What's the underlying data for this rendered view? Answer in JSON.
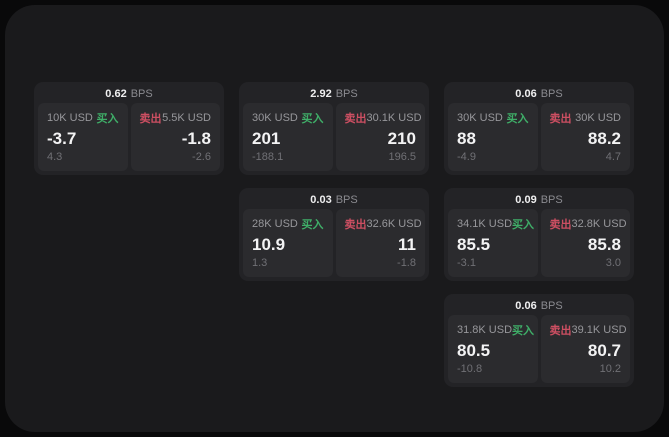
{
  "labels": {
    "bps_unit": "BPS",
    "buy_action": "买入",
    "sell_action": "卖出"
  },
  "colors": {
    "buy_green": "#3fae68",
    "sell_red": "#cd4f62",
    "page_background": "#09090a",
    "panel_background": "#1a1a1c",
    "card_background": "#232326",
    "cell_background": "#2b2b2e"
  },
  "cards": [
    {
      "bps": "0.62",
      "col": 1,
      "row": 1,
      "buy": {
        "notional": "10K USD",
        "price": "-3.7",
        "change": "4.3"
      },
      "sell": {
        "notional": "5.5K USD",
        "price": "-1.8",
        "change": "-2.6"
      }
    },
    {
      "bps": "2.92",
      "col": 2,
      "row": 1,
      "buy": {
        "notional": "30K USD",
        "price": "201",
        "change": "-188.1"
      },
      "sell": {
        "notional": "30.1K USD",
        "price": "210",
        "change": "196.5"
      }
    },
    {
      "bps": "0.06",
      "col": 3,
      "row": 1,
      "buy": {
        "notional": "30K USD",
        "price": "88",
        "change": "-4.9"
      },
      "sell": {
        "notional": "30K USD",
        "price": "88.2",
        "change": "4.7"
      }
    },
    {
      "bps": "0.03",
      "col": 2,
      "row": 2,
      "buy": {
        "notional": "28K USD",
        "price": "10.9",
        "change": "1.3"
      },
      "sell": {
        "notional": "32.6K USD",
        "price": "11",
        "change": "-1.8"
      }
    },
    {
      "bps": "0.09",
      "col": 3,
      "row": 2,
      "buy": {
        "notional": "34.1K USD",
        "price": "85.5",
        "change": "-3.1"
      },
      "sell": {
        "notional": "32.8K USD",
        "price": "85.8",
        "change": "3.0"
      }
    },
    {
      "bps": "0.06",
      "col": 3,
      "row": 3,
      "buy": {
        "notional": "31.8K USD",
        "price": "80.5",
        "change": "-10.8"
      },
      "sell": {
        "notional": "39.1K USD",
        "price": "80.7",
        "change": "10.2"
      }
    }
  ]
}
